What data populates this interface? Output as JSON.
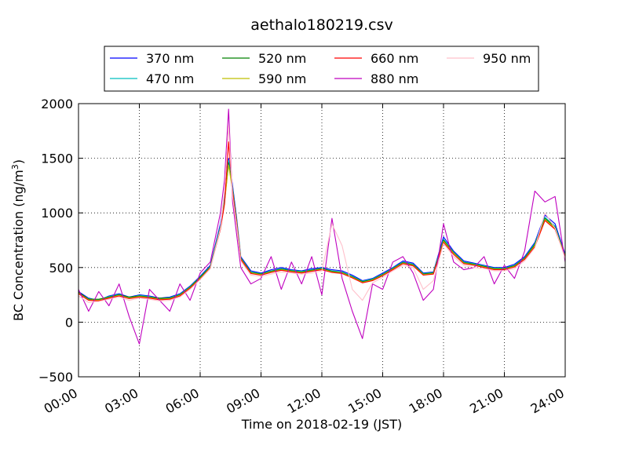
{
  "chart_data": {
    "type": "line",
    "title": "aethalo180219.csv",
    "xlabel": "Time on 2018-02-19 (JST)",
    "ylabel": "BC Concentration (ng/m³)",
    "ylabel_parts": {
      "main": "BC Concentration (ng/m",
      "sup": "3",
      "close": ")"
    },
    "xlim_hours": [
      0,
      24
    ],
    "ylim": [
      -500,
      2000
    ],
    "x_ticks": [
      {
        "hour": 0,
        "label": "00:00"
      },
      {
        "hour": 3,
        "label": "03:00"
      },
      {
        "hour": 6,
        "label": "06:00"
      },
      {
        "hour": 9,
        "label": "09:00"
      },
      {
        "hour": 12,
        "label": "12:00"
      },
      {
        "hour": 15,
        "label": "15:00"
      },
      {
        "hour": 18,
        "label": "18:00"
      },
      {
        "hour": 21,
        "label": "21:00"
      },
      {
        "hour": 24,
        "label": "24:00"
      }
    ],
    "y_ticks": [
      {
        "value": -500,
        "label": "−500"
      },
      {
        "value": 0,
        "label": "0"
      },
      {
        "value": 500,
        "label": "500"
      },
      {
        "value": 1000,
        "label": "1000"
      },
      {
        "value": 1500,
        "label": "1500"
      },
      {
        "value": 2000,
        "label": "2000"
      }
    ],
    "grid": true,
    "legend_position": "top, above plot, 4 columns",
    "x_hours": [
      0,
      0.5,
      1,
      1.5,
      2,
      2.5,
      3,
      3.5,
      4,
      4.5,
      5,
      5.5,
      6,
      6.5,
      7,
      7.2,
      7.4,
      7.6,
      7.8,
      8,
      8.5,
      9,
      9.5,
      10,
      10.5,
      11,
      11.5,
      12,
      12.5,
      13,
      13.5,
      14,
      14.5,
      15,
      15.5,
      16,
      16.5,
      17,
      17.5,
      18,
      18.5,
      19,
      19.5,
      20,
      20.5,
      21,
      21.5,
      22,
      22.5,
      23,
      23.5,
      24
    ],
    "series": [
      {
        "name": "370 nm",
        "color": "#0000ff",
        "values": [
          280,
          220,
          200,
          240,
          260,
          230,
          250,
          240,
          220,
          230,
          260,
          330,
          420,
          520,
          900,
          1150,
          1500,
          1250,
          950,
          600,
          470,
          450,
          480,
          500,
          480,
          470,
          490,
          500,
          480,
          470,
          430,
          380,
          400,
          450,
          500,
          560,
          540,
          450,
          460,
          780,
          650,
          560,
          540,
          520,
          500,
          500,
          530,
          600,
          730,
          980,
          900,
          620
        ]
      },
      {
        "name": "470 nm",
        "color": "#00bfbf",
        "values": [
          270,
          215,
          205,
          235,
          255,
          225,
          245,
          235,
          215,
          225,
          255,
          325,
          415,
          510,
          880,
          1120,
          1480,
          1230,
          930,
          590,
          460,
          445,
          470,
          490,
          475,
          465,
          480,
          495,
          470,
          460,
          420,
          375,
          395,
          440,
          495,
          550,
          530,
          445,
          455,
          760,
          640,
          550,
          535,
          515,
          495,
          495,
          520,
          590,
          720,
          960,
          880,
          610
        ]
      },
      {
        "name": "520 nm",
        "color": "#008000",
        "values": [
          275,
          210,
          210,
          230,
          250,
          230,
          240,
          230,
          220,
          220,
          250,
          320,
          410,
          505,
          870,
          1100,
          1460,
          1210,
          920,
          585,
          455,
          440,
          465,
          485,
          470,
          460,
          475,
          490,
          465,
          455,
          415,
          370,
          390,
          435,
          490,
          545,
          525,
          440,
          450,
          750,
          635,
          545,
          530,
          510,
          490,
          490,
          515,
          585,
          710,
          950,
          870,
          605
        ]
      },
      {
        "name": "590 nm",
        "color": "#bfbf00",
        "values": [
          265,
          205,
          200,
          225,
          245,
          220,
          235,
          225,
          210,
          215,
          245,
          315,
          400,
          500,
          860,
          1090,
          1440,
          1200,
          910,
          580,
          450,
          435,
          460,
          480,
          465,
          455,
          470,
          485,
          460,
          450,
          410,
          365,
          385,
          430,
          485,
          540,
          520,
          435,
          445,
          740,
          630,
          540,
          525,
          505,
          485,
          485,
          510,
          580,
          700,
          940,
          860,
          600
        ]
      },
      {
        "name": "660 nm",
        "color": "#ff0000",
        "values": [
          260,
          200,
          195,
          220,
          240,
          215,
          230,
          220,
          205,
          210,
          240,
          310,
          395,
          495,
          850,
          1080,
          1650,
          1190,
          900,
          575,
          445,
          430,
          455,
          475,
          460,
          450,
          465,
          480,
          455,
          445,
          405,
          360,
          380,
          425,
          480,
          535,
          515,
          430,
          440,
          730,
          620,
          535,
          520,
          500,
          480,
          480,
          505,
          575,
          690,
          930,
          850,
          595
        ]
      },
      {
        "name": "880 nm",
        "color": "#bf00bf",
        "values": [
          300,
          100,
          280,
          150,
          350,
          50,
          -200,
          300,
          200,
          100,
          350,
          200,
          450,
          550,
          1000,
          1300,
          1950,
          1100,
          800,
          500,
          350,
          400,
          600,
          300,
          550,
          350,
          600,
          250,
          950,
          400,
          100,
          -150,
          350,
          300,
          550,
          600,
          450,
          200,
          300,
          900,
          550,
          480,
          500,
          600,
          350,
          520,
          400,
          650,
          1200,
          1100,
          1150,
          550
        ]
      },
      {
        "name": "950 nm",
        "color": "#ffc0cb",
        "values": [
          240,
          180,
          190,
          210,
          230,
          200,
          220,
          210,
          195,
          200,
          230,
          300,
          390,
          490,
          860,
          1200,
          1800,
          1150,
          880,
          560,
          430,
          420,
          440,
          460,
          450,
          440,
          450,
          470,
          900,
          700,
          300,
          200,
          360,
          410,
          470,
          520,
          500,
          300,
          380,
          720,
          600,
          520,
          500,
          490,
          470,
          470,
          490,
          560,
          680,
          1000,
          860,
          580
        ]
      }
    ]
  }
}
